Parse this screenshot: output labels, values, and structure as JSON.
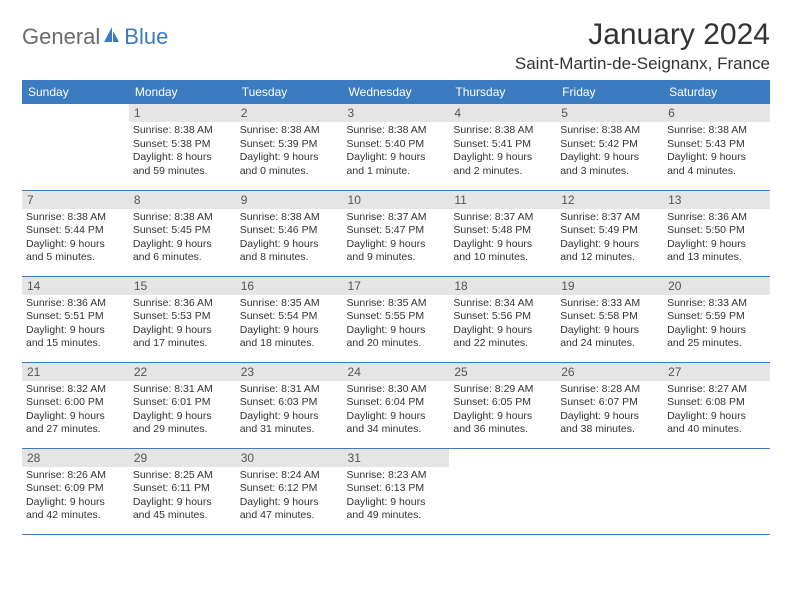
{
  "logo": {
    "part1": "General",
    "part2": "Blue"
  },
  "title": "January 2024",
  "location": "Saint-Martin-de-Seignanx, France",
  "colors": {
    "header_bg": "#3b7bbf",
    "header_text": "#ffffff",
    "daynum_bg": "#e5e5e5",
    "daynum_text": "#555555",
    "info_text": "#333333",
    "row_border": "#3b7bbf",
    "page_bg": "#ffffff"
  },
  "typography": {
    "title_fontsize": 30,
    "location_fontsize": 17,
    "dow_fontsize": 12,
    "daynum_fontsize": 12,
    "info_fontsize": 10.5
  },
  "days_of_week": [
    "Sunday",
    "Monday",
    "Tuesday",
    "Wednesday",
    "Thursday",
    "Friday",
    "Saturday"
  ],
  "weeks": [
    [
      null,
      {
        "n": "1",
        "sr": "Sunrise: 8:38 AM",
        "ss": "Sunset: 5:38 PM",
        "d1": "Daylight: 8 hours",
        "d2": "and 59 minutes."
      },
      {
        "n": "2",
        "sr": "Sunrise: 8:38 AM",
        "ss": "Sunset: 5:39 PM",
        "d1": "Daylight: 9 hours",
        "d2": "and 0 minutes."
      },
      {
        "n": "3",
        "sr": "Sunrise: 8:38 AM",
        "ss": "Sunset: 5:40 PM",
        "d1": "Daylight: 9 hours",
        "d2": "and 1 minute."
      },
      {
        "n": "4",
        "sr": "Sunrise: 8:38 AM",
        "ss": "Sunset: 5:41 PM",
        "d1": "Daylight: 9 hours",
        "d2": "and 2 minutes."
      },
      {
        "n": "5",
        "sr": "Sunrise: 8:38 AM",
        "ss": "Sunset: 5:42 PM",
        "d1": "Daylight: 9 hours",
        "d2": "and 3 minutes."
      },
      {
        "n": "6",
        "sr": "Sunrise: 8:38 AM",
        "ss": "Sunset: 5:43 PM",
        "d1": "Daylight: 9 hours",
        "d2": "and 4 minutes."
      }
    ],
    [
      {
        "n": "7",
        "sr": "Sunrise: 8:38 AM",
        "ss": "Sunset: 5:44 PM",
        "d1": "Daylight: 9 hours",
        "d2": "and 5 minutes."
      },
      {
        "n": "8",
        "sr": "Sunrise: 8:38 AM",
        "ss": "Sunset: 5:45 PM",
        "d1": "Daylight: 9 hours",
        "d2": "and 6 minutes."
      },
      {
        "n": "9",
        "sr": "Sunrise: 8:38 AM",
        "ss": "Sunset: 5:46 PM",
        "d1": "Daylight: 9 hours",
        "d2": "and 8 minutes."
      },
      {
        "n": "10",
        "sr": "Sunrise: 8:37 AM",
        "ss": "Sunset: 5:47 PM",
        "d1": "Daylight: 9 hours",
        "d2": "and 9 minutes."
      },
      {
        "n": "11",
        "sr": "Sunrise: 8:37 AM",
        "ss": "Sunset: 5:48 PM",
        "d1": "Daylight: 9 hours",
        "d2": "and 10 minutes."
      },
      {
        "n": "12",
        "sr": "Sunrise: 8:37 AM",
        "ss": "Sunset: 5:49 PM",
        "d1": "Daylight: 9 hours",
        "d2": "and 12 minutes."
      },
      {
        "n": "13",
        "sr": "Sunrise: 8:36 AM",
        "ss": "Sunset: 5:50 PM",
        "d1": "Daylight: 9 hours",
        "d2": "and 13 minutes."
      }
    ],
    [
      {
        "n": "14",
        "sr": "Sunrise: 8:36 AM",
        "ss": "Sunset: 5:51 PM",
        "d1": "Daylight: 9 hours",
        "d2": "and 15 minutes."
      },
      {
        "n": "15",
        "sr": "Sunrise: 8:36 AM",
        "ss": "Sunset: 5:53 PM",
        "d1": "Daylight: 9 hours",
        "d2": "and 17 minutes."
      },
      {
        "n": "16",
        "sr": "Sunrise: 8:35 AM",
        "ss": "Sunset: 5:54 PM",
        "d1": "Daylight: 9 hours",
        "d2": "and 18 minutes."
      },
      {
        "n": "17",
        "sr": "Sunrise: 8:35 AM",
        "ss": "Sunset: 5:55 PM",
        "d1": "Daylight: 9 hours",
        "d2": "and 20 minutes."
      },
      {
        "n": "18",
        "sr": "Sunrise: 8:34 AM",
        "ss": "Sunset: 5:56 PM",
        "d1": "Daylight: 9 hours",
        "d2": "and 22 minutes."
      },
      {
        "n": "19",
        "sr": "Sunrise: 8:33 AM",
        "ss": "Sunset: 5:58 PM",
        "d1": "Daylight: 9 hours",
        "d2": "and 24 minutes."
      },
      {
        "n": "20",
        "sr": "Sunrise: 8:33 AM",
        "ss": "Sunset: 5:59 PM",
        "d1": "Daylight: 9 hours",
        "d2": "and 25 minutes."
      }
    ],
    [
      {
        "n": "21",
        "sr": "Sunrise: 8:32 AM",
        "ss": "Sunset: 6:00 PM",
        "d1": "Daylight: 9 hours",
        "d2": "and 27 minutes."
      },
      {
        "n": "22",
        "sr": "Sunrise: 8:31 AM",
        "ss": "Sunset: 6:01 PM",
        "d1": "Daylight: 9 hours",
        "d2": "and 29 minutes."
      },
      {
        "n": "23",
        "sr": "Sunrise: 8:31 AM",
        "ss": "Sunset: 6:03 PM",
        "d1": "Daylight: 9 hours",
        "d2": "and 31 minutes."
      },
      {
        "n": "24",
        "sr": "Sunrise: 8:30 AM",
        "ss": "Sunset: 6:04 PM",
        "d1": "Daylight: 9 hours",
        "d2": "and 34 minutes."
      },
      {
        "n": "25",
        "sr": "Sunrise: 8:29 AM",
        "ss": "Sunset: 6:05 PM",
        "d1": "Daylight: 9 hours",
        "d2": "and 36 minutes."
      },
      {
        "n": "26",
        "sr": "Sunrise: 8:28 AM",
        "ss": "Sunset: 6:07 PM",
        "d1": "Daylight: 9 hours",
        "d2": "and 38 minutes."
      },
      {
        "n": "27",
        "sr": "Sunrise: 8:27 AM",
        "ss": "Sunset: 6:08 PM",
        "d1": "Daylight: 9 hours",
        "d2": "and 40 minutes."
      }
    ],
    [
      {
        "n": "28",
        "sr": "Sunrise: 8:26 AM",
        "ss": "Sunset: 6:09 PM",
        "d1": "Daylight: 9 hours",
        "d2": "and 42 minutes."
      },
      {
        "n": "29",
        "sr": "Sunrise: 8:25 AM",
        "ss": "Sunset: 6:11 PM",
        "d1": "Daylight: 9 hours",
        "d2": "and 45 minutes."
      },
      {
        "n": "30",
        "sr": "Sunrise: 8:24 AM",
        "ss": "Sunset: 6:12 PM",
        "d1": "Daylight: 9 hours",
        "d2": "and 47 minutes."
      },
      {
        "n": "31",
        "sr": "Sunrise: 8:23 AM",
        "ss": "Sunset: 6:13 PM",
        "d1": "Daylight: 9 hours",
        "d2": "and 49 minutes."
      },
      null,
      null,
      null
    ]
  ]
}
